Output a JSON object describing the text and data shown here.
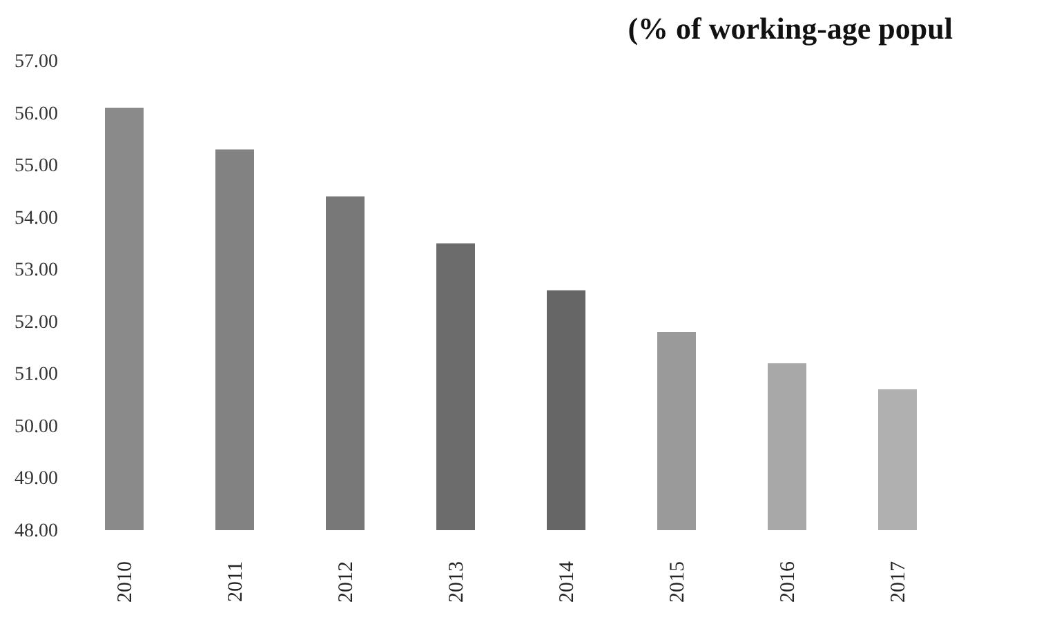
{
  "chart_data": {
    "type": "bar",
    "title": "(% of working-age popul",
    "categories": [
      "2010",
      "2011",
      "2012",
      "2013",
      "2014",
      "2015",
      "2016",
      "2017"
    ],
    "values": [
      56.1,
      55.3,
      54.4,
      53.5,
      52.6,
      51.8,
      51.2,
      50.7
    ],
    "colors": [
      "#8a8a8a",
      "#828282",
      "#787878",
      "#6c6c6c",
      "#666666",
      "#9a9a9a",
      "#a8a8a8",
      "#b0b0b0"
    ],
    "ylim": [
      48,
      57
    ],
    "yticks": [
      {
        "value": 48,
        "label": "48.00"
      },
      {
        "value": 49,
        "label": "49.00"
      },
      {
        "value": 50,
        "label": "50.00"
      },
      {
        "value": 51,
        "label": "51.00"
      },
      {
        "value": 52,
        "label": "52.00"
      },
      {
        "value": 53,
        "label": "53.00"
      },
      {
        "value": 54,
        "label": "54.00"
      },
      {
        "value": 55,
        "label": "55.00"
      },
      {
        "value": 56,
        "label": "56.00"
      },
      {
        "value": 57,
        "label": "57.00"
      }
    ]
  }
}
